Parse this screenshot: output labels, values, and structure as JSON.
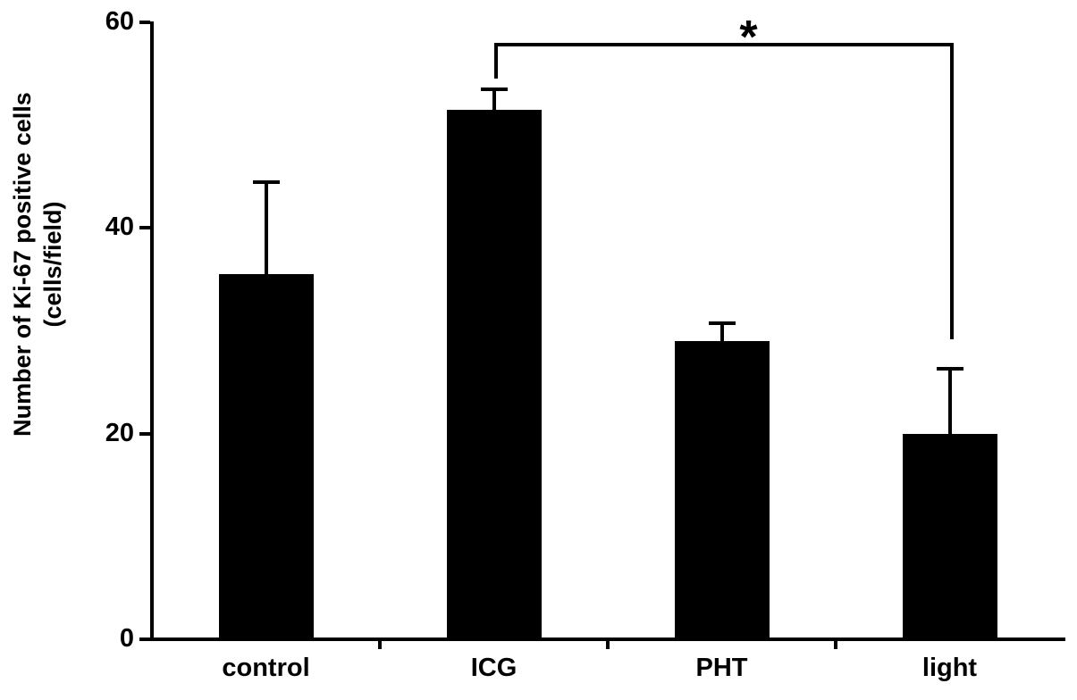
{
  "chart_data": {
    "type": "bar",
    "title": "",
    "categories": [
      "control",
      "ICG",
      "PHT",
      "light"
    ],
    "values": [
      35.5,
      51.5,
      29,
      20
    ],
    "errors": [
      9,
      2,
      1.7,
      6.3
    ],
    "error_direction": "upper",
    "ylabel": "Number of Ki-67 positive cells (cells/field)",
    "ylabel_lines": [
      "Number of Ki-67 positive cells",
      "(cells/field)"
    ],
    "xlabel": "",
    "ylim": [
      0,
      60
    ],
    "yticks": [
      0,
      20,
      40,
      60
    ],
    "bar_color": "#000000",
    "background": "#ffffff",
    "grid": false,
    "legend": "none",
    "significance": {
      "from": "ICG",
      "to": "light",
      "from_index": 1,
      "to_index": 3,
      "label": "*",
      "y": 58,
      "left_drop_to": 54.5,
      "right_drop_to": 29.2
    }
  }
}
